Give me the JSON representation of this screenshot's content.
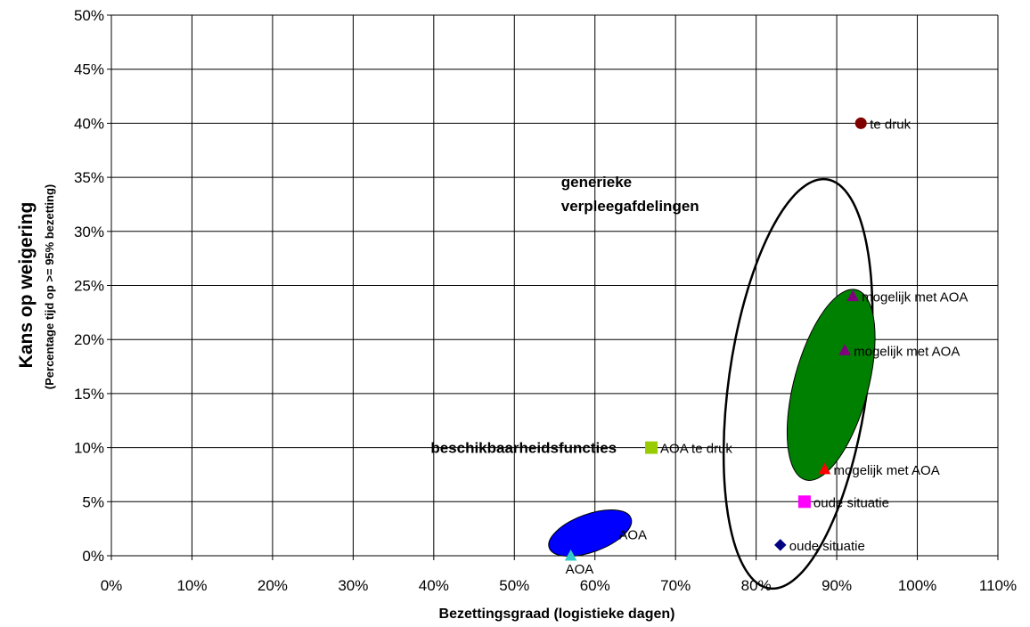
{
  "chart_data": {
    "type": "scatter",
    "title": "",
    "xlabel": "Bezettingsgraad (logistieke dagen)",
    "ylabel": "Kans op weigering",
    "ylabel_sub": "(Percentage tijd op >= 95% bezetting)",
    "xlim": [
      0,
      110
    ],
    "ylim": [
      0,
      50
    ],
    "x_ticks": [
      0,
      10,
      20,
      30,
      40,
      50,
      60,
      70,
      80,
      90,
      100,
      110
    ],
    "y_ticks": [
      0,
      5,
      10,
      15,
      20,
      25,
      30,
      35,
      40,
      45,
      50
    ],
    "tick_suffix": "%",
    "grid": true,
    "points": [
      {
        "x": 93,
        "y": 40,
        "label": "te druk",
        "marker": "circle",
        "color": "#800000"
      },
      {
        "x": 67,
        "y": 10,
        "label": "AOA te druk",
        "marker": "square",
        "color": "#99cc00"
      },
      {
        "x": 86,
        "y": 5,
        "label": "oude situatie",
        "marker": "square",
        "color": "#ff00ff"
      },
      {
        "x": 83,
        "y": 1,
        "label": "oude situatie",
        "marker": "diamond",
        "color": "#000080"
      },
      {
        "x": 92,
        "y": 24,
        "label": "mogelijk met AOA",
        "marker": "triangle",
        "color": "#800080"
      },
      {
        "x": 91,
        "y": 19,
        "label": "mogelijk met AOA",
        "marker": "triangle",
        "color": "#800080"
      },
      {
        "x": 88.5,
        "y": 8,
        "label": "mogelijk met AOA",
        "marker": "triangle",
        "color": "#ff0000"
      },
      {
        "x": 62.5,
        "y": 2,
        "label": "AOA",
        "marker": "triangle",
        "color": "#0000ff"
      },
      {
        "x": 57,
        "y": 0,
        "label": "AOA",
        "marker": "triangle",
        "color": "#33cccc"
      }
    ],
    "ellipses": [
      {
        "name": "generiek-outline",
        "cx": 85.2,
        "cy": 15.9,
        "rx": 8.6,
        "ry": 19.1,
        "angle": 8,
        "fill": "none",
        "stroke": "#000000",
        "stroke_width": 2.5
      },
      {
        "name": "generiek-green",
        "cx": 89.3,
        "cy": 15.8,
        "rx": 4.6,
        "ry": 9.1,
        "angle": 15,
        "fill": "#008000",
        "stroke": "#000000",
        "stroke_width": 1
      },
      {
        "name": "beschikbaarheid-blue",
        "cx": 59.4,
        "cy": 2.1,
        "rx": 5.4,
        "ry": 1.75,
        "angle": -20,
        "fill": "#0000ff",
        "stroke": "#000000",
        "stroke_width": 1
      }
    ],
    "annotations": [
      {
        "lines": [
          "generieke",
          "verpleegafdelingen"
        ],
        "x": 55.8,
        "y": 34.6,
        "anchor": "start"
      },
      {
        "lines": [
          "beschikbaarheidsfuncties"
        ],
        "x": 62.7,
        "y": 10,
        "anchor": "end"
      }
    ]
  }
}
